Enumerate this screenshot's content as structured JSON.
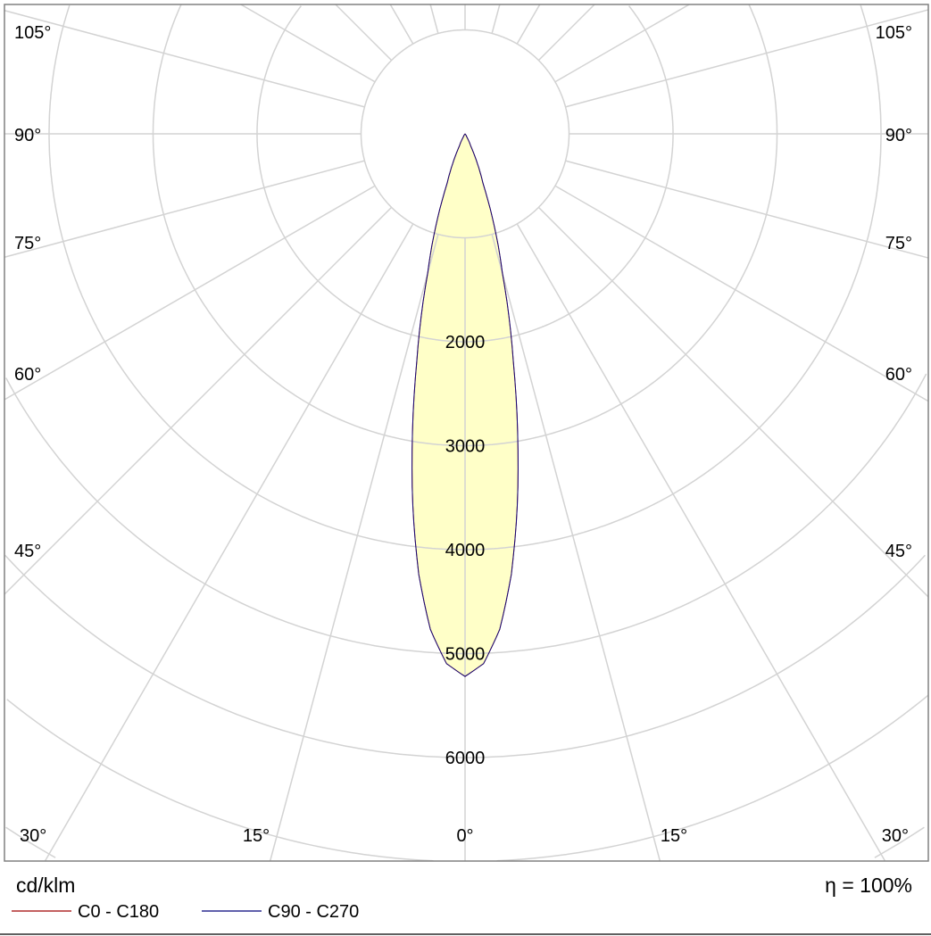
{
  "chart_data": {
    "type": "polar",
    "unit": "cd/klm",
    "efficiency_label": "η = 100%",
    "radial_ticks": [
      2000,
      3000,
      4000,
      5000,
      6000
    ],
    "radial_tick_labels": [
      "2000",
      "3000",
      "4000",
      "5000",
      "6000"
    ],
    "radial_grid_step": 1000,
    "angle_grid_step_deg": 15,
    "angle_labels_left": [
      "105°",
      "90°",
      "75°",
      "60°",
      "45°",
      "30°"
    ],
    "angle_labels_bottom": [
      "15°",
      "0°",
      "15°"
    ],
    "angle_labels_right": [
      "105°",
      "90°",
      "75°",
      "60°",
      "45°",
      "30°"
    ],
    "series": [
      {
        "name": "C0 - C180",
        "color": "#a00000",
        "angles_deg": [
          0,
          2,
          4,
          6,
          8,
          10,
          12,
          15,
          20,
          25,
          30,
          40,
          50,
          60,
          70,
          80,
          90
        ],
        "values": [
          5220,
          5100,
          4780,
          4260,
          3610,
          2910,
          2230,
          1390,
          500,
          130,
          30,
          0,
          0,
          0,
          0,
          0,
          0
        ]
      },
      {
        "name": "C90 - C270",
        "color": "#00007a",
        "angles_deg": [
          0,
          2,
          4,
          6,
          8,
          10,
          12,
          15,
          20,
          25,
          30,
          40,
          50,
          60,
          70,
          80,
          90
        ],
        "values": [
          5220,
          5100,
          4780,
          4260,
          3610,
          2910,
          2230,
          1390,
          500,
          130,
          30,
          0,
          0,
          0,
          0,
          0,
          0
        ]
      }
    ],
    "fill_color": "#ffffc8",
    "grid_color": "#d3d3d3"
  }
}
